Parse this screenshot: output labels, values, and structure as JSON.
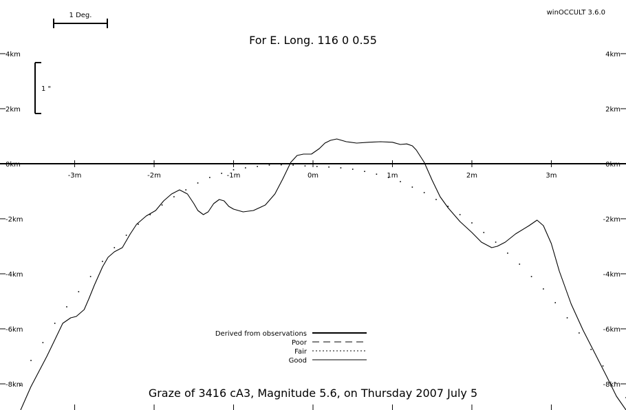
{
  "app_version": "winOCCULT 3.6.0",
  "scale_bar_label": "1 Deg.",
  "arcsec_label": "1 \"",
  "chart_data": {
    "type": "line",
    "title": "For E. Long.  116  0  0.55",
    "footer": "Graze of     3416  cA3,  Magnitude   5.6,  on Thursday  2007  July   5",
    "x_ticks": [
      "-3m",
      "-2m",
      "-1m",
      "0m",
      "1m",
      "2m",
      "3m"
    ],
    "x_tick_values": [
      -3,
      -2,
      -1,
      0,
      1,
      2,
      3
    ],
    "y_ticks": [
      "4km",
      "2km",
      "0km",
      "-2km",
      "-4km",
      "-6km",
      "-8km"
    ],
    "y_tick_values": [
      4,
      2,
      0,
      -2,
      -4,
      -6,
      -8
    ],
    "xlim": [
      -3.94,
      3.94
    ],
    "ylim": [
      -8.95,
      5.95
    ],
    "legend": [
      {
        "label": "Derived from observations",
        "style": "thick"
      },
      {
        "label": "Poor",
        "style": "dashed"
      },
      {
        "label": "Fair",
        "style": "dotted"
      },
      {
        "label": "Good",
        "style": "thin"
      }
    ],
    "series": [
      {
        "style": "thin",
        "x": [
          -3.68,
          -3.55,
          -3.35,
          -3.25,
          -3.15,
          -3.05,
          -2.98,
          -2.88,
          -2.82,
          -2.75,
          -2.65,
          -2.58,
          -2.5,
          -2.4,
          -2.3,
          -2.22,
          -2.1,
          -1.98,
          -1.88,
          -1.78,
          -1.68,
          -1.58,
          -1.5,
          -1.45,
          -1.38,
          -1.32,
          -1.25,
          -1.18,
          -1.12,
          -1.06,
          -1.0,
          -0.88,
          -0.75,
          -0.6,
          -0.48,
          -0.38,
          -0.28,
          -0.2,
          -0.12,
          -0.02,
          0.08,
          0.15,
          0.22,
          0.3,
          0.42,
          0.55,
          0.7,
          0.85,
          1.0,
          1.1,
          1.18,
          1.25,
          1.3,
          1.4,
          1.5,
          1.6,
          1.7,
          1.85,
          2.0,
          2.12,
          2.25,
          2.32,
          2.42,
          2.55,
          2.72,
          2.82,
          2.9,
          3.0,
          3.1,
          3.25,
          3.4,
          3.55,
          3.7,
          3.82,
          3.94
        ],
        "y": [
          -8.95,
          -8.1,
          -7.0,
          -6.4,
          -5.8,
          -5.6,
          -5.55,
          -5.3,
          -4.9,
          -4.4,
          -3.75,
          -3.4,
          -3.2,
          -3.05,
          -2.55,
          -2.2,
          -1.9,
          -1.7,
          -1.35,
          -1.1,
          -0.95,
          -1.1,
          -1.45,
          -1.7,
          -1.85,
          -1.75,
          -1.45,
          -1.3,
          -1.35,
          -1.55,
          -1.65,
          -1.75,
          -1.7,
          -1.5,
          -1.1,
          -0.55,
          0.05,
          0.3,
          0.35,
          0.35,
          0.55,
          0.75,
          0.85,
          0.9,
          0.8,
          0.75,
          0.78,
          0.8,
          0.78,
          0.7,
          0.72,
          0.65,
          0.5,
          0.05,
          -0.6,
          -1.2,
          -1.6,
          -2.1,
          -2.5,
          -2.85,
          -3.05,
          -3.0,
          -2.85,
          -2.55,
          -2.25,
          -2.05,
          -2.25,
          -2.9,
          -3.9,
          -5.1,
          -6.05,
          -6.9,
          -7.75,
          -8.45,
          -8.95
        ]
      },
      {
        "style": "dotted",
        "x": [
          -3.68,
          -3.55,
          -3.4,
          -3.25,
          -3.1,
          -2.95,
          -2.8,
          -2.65,
          -2.5,
          -2.35,
          -2.2,
          -2.05,
          -1.9,
          -1.75,
          -1.6,
          -1.45,
          -1.3,
          -1.15,
          -1.0,
          -0.85,
          -0.7,
          -0.55,
          -0.4,
          -0.25,
          -0.1,
          0.05,
          0.2,
          0.35,
          0.5,
          0.65,
          0.8,
          0.95,
          1.1,
          1.25,
          1.4,
          1.55,
          1.7,
          1.85,
          2.0,
          2.15,
          2.3,
          2.45,
          2.6,
          2.75,
          2.9,
          3.05,
          3.2,
          3.35,
          3.5,
          3.65,
          3.8,
          3.94
        ],
        "y": [
          -8.05,
          -7.15,
          -6.5,
          -5.8,
          -5.2,
          -4.65,
          -4.1,
          -3.55,
          -3.05,
          -2.6,
          -2.2,
          -1.85,
          -1.5,
          -1.2,
          -0.95,
          -0.7,
          -0.5,
          -0.35,
          -0.22,
          -0.15,
          -0.1,
          -0.05,
          -0.04,
          -0.05,
          -0.08,
          -0.1,
          -0.12,
          -0.15,
          -0.2,
          -0.28,
          -0.38,
          -0.5,
          -0.65,
          -0.85,
          -1.05,
          -1.3,
          -1.55,
          -1.85,
          -2.15,
          -2.5,
          -2.85,
          -3.25,
          -3.65,
          -4.1,
          -4.55,
          -5.05,
          -5.6,
          -6.15,
          -6.75,
          -7.35,
          -7.95,
          -8.5
        ]
      }
    ]
  }
}
